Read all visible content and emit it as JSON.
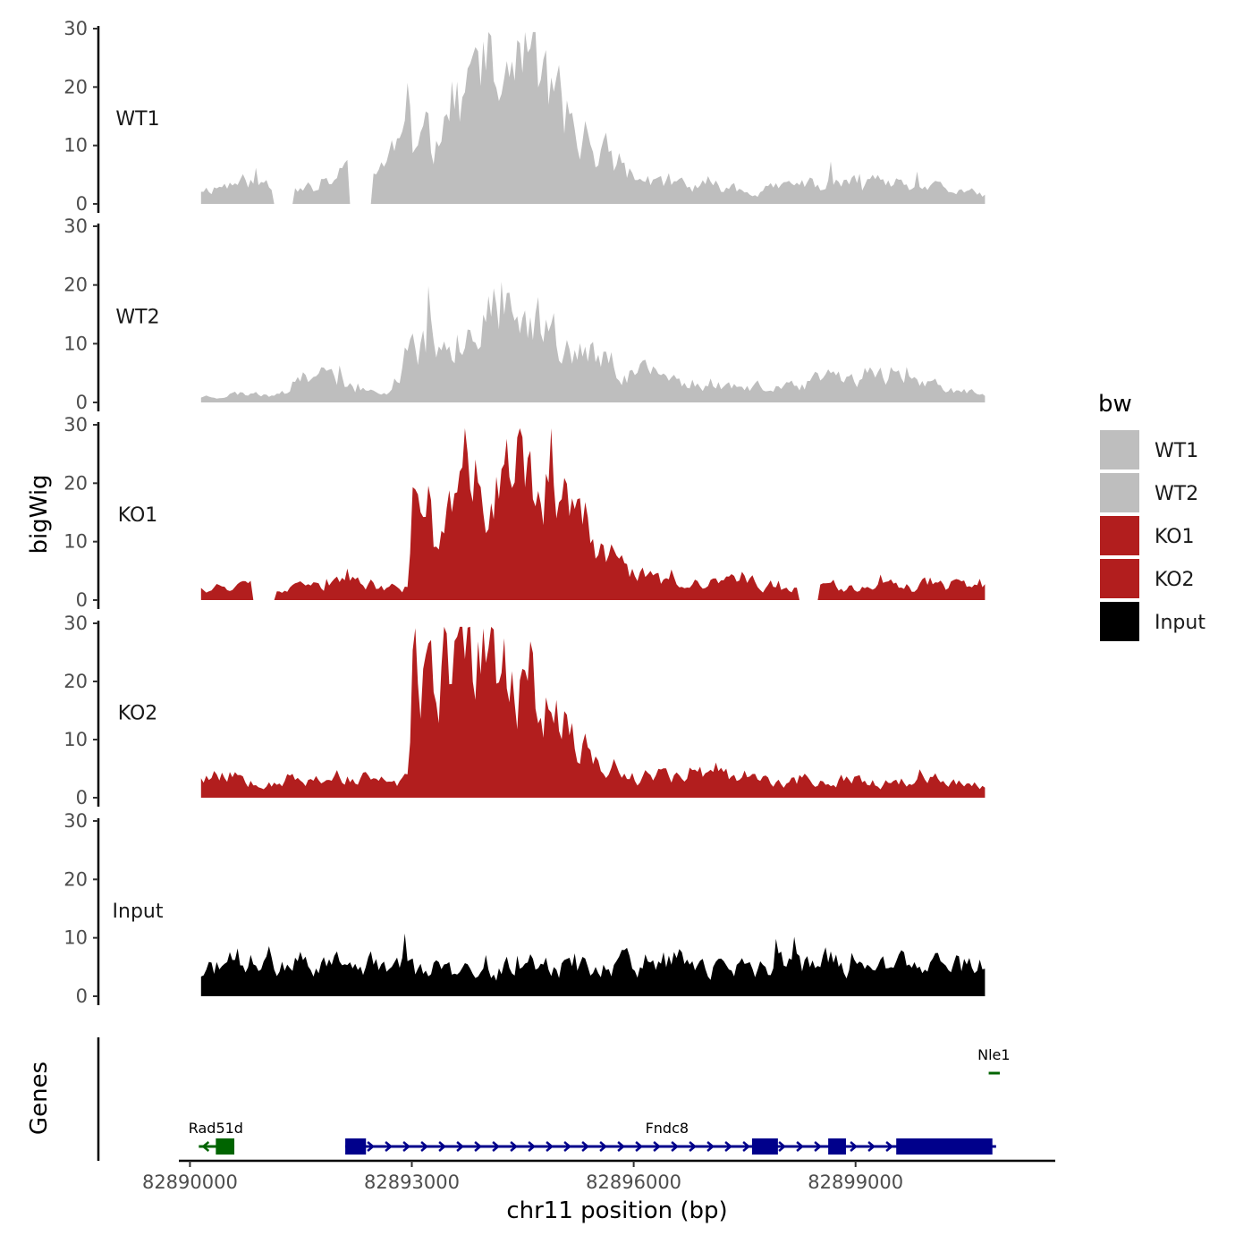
{
  "chart_data": {
    "type": "area",
    "ylabel": "bigWig",
    "genes_label": "Genes",
    "xlabel": "chr11 position (bp)",
    "xlim": [
      82889850,
      82901700
    ],
    "region": [
      82890150,
      82900750
    ],
    "ylim": [
      0,
      30
    ],
    "yticks": [
      0,
      10,
      20,
      30
    ],
    "xticks": [
      {
        "value": 82890000,
        "label": "82890000"
      },
      {
        "value": 82893000,
        "label": "82893000"
      },
      {
        "value": 82896000,
        "label": "82896000"
      },
      {
        "value": 82899000,
        "label": "82899000"
      }
    ],
    "tracks": [
      {
        "name": "WT1",
        "color": "#bebebe",
        "seed": 11,
        "profile": [
          [
            0,
            2.5
          ],
          [
            0.04,
            3.5
          ],
          [
            0.09,
            4
          ],
          [
            0.12,
            2.5
          ],
          [
            0.15,
            3
          ],
          [
            0.19,
            6
          ],
          [
            0.21,
            3.5
          ],
          [
            0.25,
            10
          ],
          [
            0.28,
            12
          ],
          [
            0.33,
            18
          ],
          [
            0.36,
            23
          ],
          [
            0.38,
            19
          ],
          [
            0.4,
            26
          ],
          [
            0.42,
            24
          ],
          [
            0.45,
            18
          ],
          [
            0.47,
            14
          ],
          [
            0.5,
            11
          ],
          [
            0.52,
            8
          ],
          [
            0.56,
            4
          ],
          [
            0.6,
            3.5
          ],
          [
            0.65,
            3
          ],
          [
            0.7,
            2.5
          ],
          [
            0.75,
            3
          ],
          [
            0.8,
            3.5
          ],
          [
            0.85,
            3.5
          ],
          [
            0.9,
            3
          ],
          [
            0.95,
            2.5
          ],
          [
            1,
            1.5
          ]
        ],
        "dips": [
          [
            0.105,
            0.015
          ],
          [
            0.205,
            0.015
          ]
        ]
      },
      {
        "name": "WT2",
        "color": "#bebebe",
        "seed": 23,
        "profile": [
          [
            0,
            1
          ],
          [
            0.05,
            1.5
          ],
          [
            0.1,
            1.5
          ],
          [
            0.14,
            4
          ],
          [
            0.17,
            5
          ],
          [
            0.2,
            2
          ],
          [
            0.24,
            1.5
          ],
          [
            0.27,
            10
          ],
          [
            0.3,
            11
          ],
          [
            0.34,
            14
          ],
          [
            0.37,
            15
          ],
          [
            0.41,
            13
          ],
          [
            0.45,
            14
          ],
          [
            0.48,
            9
          ],
          [
            0.52,
            7
          ],
          [
            0.57,
            5
          ],
          [
            0.61,
            3.5
          ],
          [
            0.65,
            3.5
          ],
          [
            0.7,
            2.5
          ],
          [
            0.75,
            2.5
          ],
          [
            0.8,
            4
          ],
          [
            0.84,
            5
          ],
          [
            0.88,
            5
          ],
          [
            0.93,
            3
          ],
          [
            0.97,
            2
          ],
          [
            1,
            1
          ]
        ],
        "dips": []
      },
      {
        "name": "KO1",
        "color": "#b21e1e",
        "seed": 37,
        "profile": [
          [
            0,
            2.5
          ],
          [
            0.05,
            2.5
          ],
          [
            0.1,
            1.5
          ],
          [
            0.15,
            2.5
          ],
          [
            0.2,
            3
          ],
          [
            0.25,
            2
          ],
          [
            0.265,
            2
          ],
          [
            0.27,
            15
          ],
          [
            0.3,
            16
          ],
          [
            0.34,
            18
          ],
          [
            0.38,
            20
          ],
          [
            0.41,
            22
          ],
          [
            0.44,
            19
          ],
          [
            0.48,
            13
          ],
          [
            0.51,
            8
          ],
          [
            0.55,
            5
          ],
          [
            0.58,
            3.5
          ],
          [
            0.62,
            2.5
          ],
          [
            0.66,
            3
          ],
          [
            0.7,
            3
          ],
          [
            0.75,
            2.5
          ],
          [
            0.8,
            2.5
          ],
          [
            0.85,
            2.5
          ],
          [
            0.9,
            2.5
          ],
          [
            0.94,
            3.5
          ],
          [
            0.97,
            2.5
          ],
          [
            1,
            1.5
          ]
        ],
        "dips": [
          [
            0.08,
            0.015
          ],
          [
            0.775,
            0.012
          ]
        ]
      },
      {
        "name": "KO2",
        "color": "#b21e1e",
        "seed": 53,
        "profile": [
          [
            0,
            4
          ],
          [
            0.05,
            4
          ],
          [
            0.1,
            3
          ],
          [
            0.15,
            3.5
          ],
          [
            0.2,
            3.5
          ],
          [
            0.25,
            2.5
          ],
          [
            0.265,
            3
          ],
          [
            0.27,
            18
          ],
          [
            0.3,
            22
          ],
          [
            0.34,
            23
          ],
          [
            0.38,
            23
          ],
          [
            0.41,
            21
          ],
          [
            0.44,
            19
          ],
          [
            0.47,
            12
          ],
          [
            0.5,
            8
          ],
          [
            0.53,
            5
          ],
          [
            0.58,
            4
          ],
          [
            0.62,
            4.5
          ],
          [
            0.66,
            3.5
          ],
          [
            0.7,
            3
          ],
          [
            0.75,
            3
          ],
          [
            0.8,
            3
          ],
          [
            0.85,
            3
          ],
          [
            0.9,
            3
          ],
          [
            0.95,
            3
          ],
          [
            1,
            2
          ]
        ],
        "dips": []
      },
      {
        "name": "Input",
        "color": "#000000",
        "seed": 71,
        "profile": [
          [
            0,
            4
          ],
          [
            0.05,
            6
          ],
          [
            0.1,
            5
          ],
          [
            0.15,
            6
          ],
          [
            0.2,
            5
          ],
          [
            0.25,
            5.5
          ],
          [
            0.3,
            5
          ],
          [
            0.35,
            4
          ],
          [
            0.4,
            5
          ],
          [
            0.45,
            6
          ],
          [
            0.5,
            5
          ],
          [
            0.55,
            6
          ],
          [
            0.6,
            6
          ],
          [
            0.65,
            5
          ],
          [
            0.7,
            5
          ],
          [
            0.75,
            6
          ],
          [
            0.8,
            6
          ],
          [
            0.85,
            4
          ],
          [
            0.9,
            6
          ],
          [
            0.95,
            5
          ],
          [
            1,
            5.5
          ]
        ],
        "dips": []
      }
    ],
    "genes": [
      {
        "name": "Rad51d",
        "strand": "-",
        "color": "#006400",
        "start": 82890120,
        "end": 82890600,
        "exons": [
          [
            82890350,
            82890600
          ]
        ],
        "row": "lower",
        "label_pos": 82890350
      },
      {
        "name": "Fndc8",
        "strand": "+",
        "color": "#00008b",
        "start": 82892100,
        "end": 82900900,
        "exons": [
          [
            82892100,
            82892380
          ],
          [
            82897600,
            82897950
          ],
          [
            82898630,
            82898870
          ],
          [
            82899550,
            82900850
          ]
        ],
        "row": "lower",
        "label_pos": 82896450
      },
      {
        "name": "Nle1",
        "strand": "-",
        "color": "#006400",
        "start": 82900800,
        "end": 82900950,
        "exons": [],
        "row": "upper",
        "label_pos": 82900870
      }
    ],
    "legend": {
      "title": "bw",
      "entries": [
        {
          "label": "WT1",
          "color": "#bebebe"
        },
        {
          "label": "WT2",
          "color": "#bebebe"
        },
        {
          "label": "KO1",
          "color": "#b21e1e"
        },
        {
          "label": "KO2",
          "color": "#b21e1e"
        },
        {
          "label": "Input",
          "color": "#000000"
        }
      ]
    }
  }
}
